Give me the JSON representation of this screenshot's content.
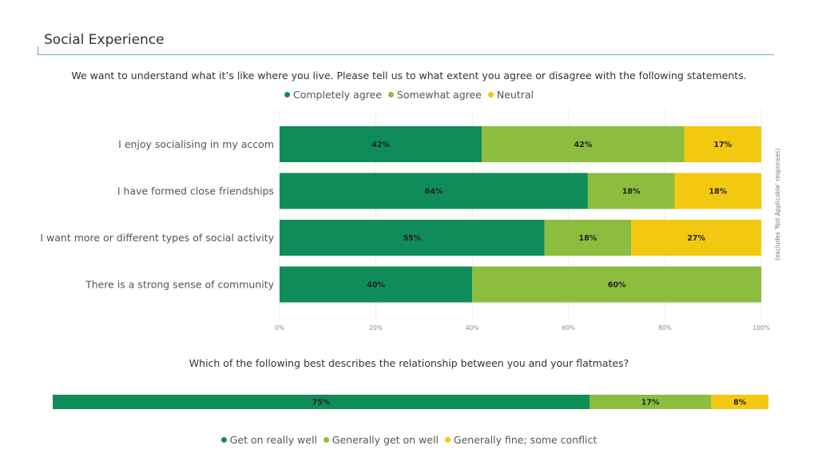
{
  "section": {
    "title": "Social Experience"
  },
  "questions": {
    "q1": "We want to understand what it’s like where you live. Please tell us to what extent you agree or disagree with the following statements.",
    "q2": "Which of the following best describes the relationship between you and your flatmates?"
  },
  "legends": {
    "top": [
      {
        "label": "Completely agree",
        "color": "#108c5a"
      },
      {
        "label": "Somewhat agree",
        "color": "#8cbd3f"
      },
      {
        "label": "Neutral",
        "color": "#f2c811"
      }
    ],
    "bottom": [
      {
        "label": "Get on really well",
        "color": "#108c5a"
      },
      {
        "label": "Generally get on well",
        "color": "#8cbd3f"
      },
      {
        "label": "Generally fine; some conflict",
        "color": "#f2c811"
      }
    ]
  },
  "side_note": "(excludes 'Not Applicable' responses)",
  "chart_data": [
    {
      "type": "bar",
      "orientation": "horizontal",
      "stacked": true,
      "categories": [
        "I enjoy socialising in my accom",
        "I have formed close friendships",
        "I want more or different types of social activity",
        "There is a strong sense of community"
      ],
      "series": [
        {
          "name": "Completely agree",
          "color": "#108c5a",
          "values": [
            42,
            64,
            55,
            40
          ]
        },
        {
          "name": "Somewhat agree",
          "color": "#8cbd3f",
          "values": [
            42,
            18,
            18,
            60
          ]
        },
        {
          "name": "Neutral",
          "color": "#f2c811",
          "values": [
            17,
            18,
            27,
            0
          ]
        }
      ],
      "value_labels": [
        [
          "42%",
          "42%",
          "17%"
        ],
        [
          "64%",
          "18%",
          "18%"
        ],
        [
          "55%",
          "18%",
          "27%"
        ],
        [
          "40%",
          "60%",
          ""
        ]
      ],
      "xlim": [
        0,
        100
      ],
      "x_ticks": [
        "0%",
        "20%",
        "40%",
        "60%",
        "80%",
        "100%"
      ],
      "grid": true,
      "legend": "top"
    },
    {
      "type": "bar",
      "orientation": "horizontal",
      "stacked": true,
      "categories": [
        ""
      ],
      "series": [
        {
          "name": "Get on really well",
          "color": "#108c5a",
          "values": [
            75
          ]
        },
        {
          "name": "Generally get on well",
          "color": "#8cbd3f",
          "values": [
            17
          ]
        },
        {
          "name": "Generally fine; some conflict",
          "color": "#f2c811",
          "values": [
            8
          ]
        }
      ],
      "value_labels": [
        [
          "75%",
          "17%",
          "8%"
        ]
      ],
      "xlim": [
        0,
        100
      ],
      "legend": "bottom"
    }
  ]
}
